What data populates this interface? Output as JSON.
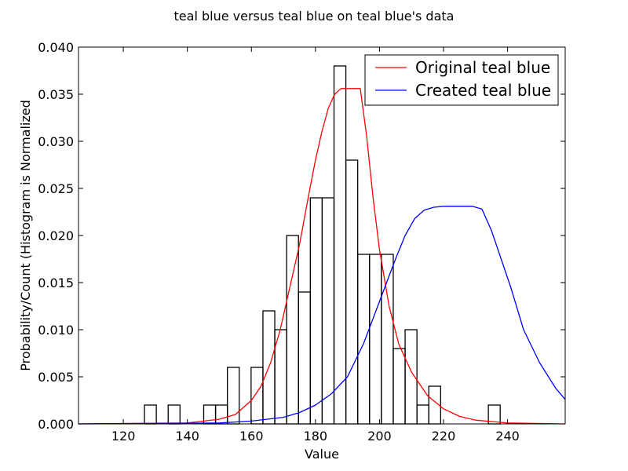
{
  "chart_data": {
    "type": "bar",
    "title": "teal blue versus teal blue on teal blue's data",
    "xlabel": "Value",
    "ylabel": "Probability/Count (Histogram is Normalized",
    "xlim": [
      106,
      258
    ],
    "ylim": [
      0,
      0.04
    ],
    "xticks": [
      120,
      140,
      160,
      180,
      200,
      220,
      240
    ],
    "yticks": [
      0.0,
      0.005,
      0.01,
      0.015,
      0.02,
      0.025,
      0.03,
      0.035,
      0.04
    ],
    "ytick_labels": [
      "0.000",
      "0.005",
      "0.010",
      "0.015",
      "0.020",
      "0.025",
      "0.030",
      "0.035",
      "0.040"
    ],
    "grid": false,
    "legend": "top-right",
    "histogram": {
      "bin_width": 3.7,
      "bins": [
        {
          "x0": 126.6,
          "height": 0.002
        },
        {
          "x0": 134.0,
          "height": 0.002
        },
        {
          "x0": 145.1,
          "height": 0.002
        },
        {
          "x0": 148.8,
          "height": 0.002
        },
        {
          "x0": 152.5,
          "height": 0.006
        },
        {
          "x0": 159.9,
          "height": 0.006
        },
        {
          "x0": 163.6,
          "height": 0.012
        },
        {
          "x0": 167.3,
          "height": 0.01
        },
        {
          "x0": 171.0,
          "height": 0.02
        },
        {
          "x0": 174.7,
          "height": 0.014
        },
        {
          "x0": 178.4,
          "height": 0.024
        },
        {
          "x0": 182.1,
          "height": 0.024
        },
        {
          "x0": 185.8,
          "height": 0.038
        },
        {
          "x0": 189.5,
          "height": 0.028
        },
        {
          "x0": 193.2,
          "height": 0.018
        },
        {
          "x0": 196.9,
          "height": 0.018
        },
        {
          "x0": 200.6,
          "height": 0.018
        },
        {
          "x0": 204.3,
          "height": 0.008
        },
        {
          "x0": 208.0,
          "height": 0.01
        },
        {
          "x0": 211.7,
          "height": 0.002
        },
        {
          "x0": 215.4,
          "height": 0.004
        },
        {
          "x0": 234.0,
          "height": 0.002
        }
      ]
    },
    "series": [
      {
        "name": "Original teal blue",
        "color": "#ff0000",
        "x": [
          106,
          140,
          150,
          155,
          160,
          163,
          166,
          169,
          172,
          175,
          178,
          180,
          182,
          184,
          186,
          188,
          190,
          192,
          194,
          196,
          198,
          200,
          203,
          206,
          210,
          215,
          220,
          225,
          230,
          240,
          258
        ],
        "y": [
          0.0,
          0.0001,
          0.0005,
          0.001,
          0.0025,
          0.004,
          0.0065,
          0.01,
          0.0145,
          0.019,
          0.0245,
          0.028,
          0.031,
          0.0335,
          0.035,
          0.0356,
          0.0356,
          0.0356,
          0.0356,
          0.0305,
          0.024,
          0.0185,
          0.0125,
          0.0085,
          0.0055,
          0.003,
          0.0016,
          0.0008,
          0.0004,
          0.0001,
          0.0
        ]
      },
      {
        "name": "Created teal blue",
        "color": "#0000ff",
        "x": [
          106,
          150,
          160,
          170,
          175,
          180,
          185,
          190,
          195,
          200,
          205,
          208,
          211,
          214,
          217,
          220,
          223,
          226,
          229,
          232,
          235,
          238,
          241,
          245,
          250,
          255,
          258
        ],
        "y": [
          0.0,
          0.0001,
          0.0003,
          0.0007,
          0.0012,
          0.002,
          0.0032,
          0.005,
          0.0085,
          0.013,
          0.0175,
          0.02,
          0.0218,
          0.0227,
          0.023,
          0.0231,
          0.0231,
          0.0231,
          0.0231,
          0.0228,
          0.0205,
          0.0175,
          0.0145,
          0.01,
          0.0065,
          0.0038,
          0.0026
        ]
      }
    ]
  }
}
